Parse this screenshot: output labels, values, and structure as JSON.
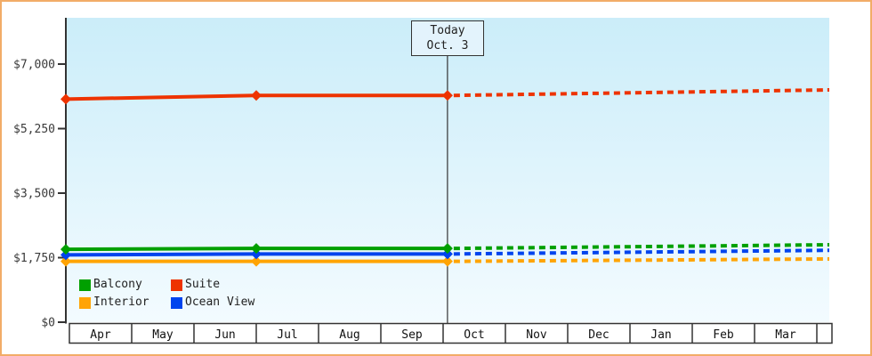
{
  "chart_data": {
    "type": "line",
    "title": "",
    "y_axis": {
      "max_value": 7000,
      "ticks": [
        {
          "label": "$0",
          "value": 0
        },
        {
          "label": "$1,750",
          "value": 1750
        },
        {
          "label": "$3,500",
          "value": 3500
        },
        {
          "label": "$5,250",
          "value": 5250
        },
        {
          "label": "$7,000",
          "value": 7000
        }
      ]
    },
    "x_axis": {
      "categories": [
        "Apr",
        "May",
        "Jun",
        "Jul",
        "Aug",
        "Sep",
        "Oct",
        "Nov",
        "Dec",
        "Jan",
        "Feb",
        "Mar"
      ]
    },
    "today": {
      "line1": "Today",
      "line2": "Oct. 3",
      "month_offset": 6.07
    },
    "series": [
      {
        "name": "Interior",
        "color": "#FFA405",
        "solid": {
          "x": [
            0,
            3,
            6.07
          ],
          "values": [
            1650,
            1650,
            1650
          ]
        },
        "dashed": {
          "x": [
            6.17,
            12.2
          ],
          "values": [
            1650,
            1715
          ]
        }
      },
      {
        "name": "Ocean View",
        "color": "#0044EE",
        "solid": {
          "x": [
            0,
            3,
            6.07
          ],
          "values": [
            1825,
            1850,
            1850
          ]
        },
        "dashed": {
          "x": [
            6.17,
            12.2
          ],
          "values": [
            1850,
            1950
          ]
        }
      },
      {
        "name": "Balcony",
        "color": "#00A000",
        "solid": {
          "x": [
            0,
            3,
            6.07
          ],
          "values": [
            1975,
            2000,
            2000
          ]
        },
        "dashed": {
          "x": [
            6.17,
            12.2
          ],
          "values": [
            2000,
            2100
          ]
        }
      },
      {
        "name": "Suite",
        "color": "#EE3300",
        "solid": {
          "x": [
            0,
            3,
            6.07
          ],
          "values": [
            6050,
            6150,
            6150
          ]
        },
        "dashed": {
          "x": [
            6.17,
            12.2
          ],
          "values": [
            6150,
            6300
          ]
        }
      }
    ],
    "legend_position": "bottom-left-inside"
  },
  "legend": {
    "items": [
      {
        "label": "Balcony",
        "color": "#00A000"
      },
      {
        "label": "Suite",
        "color": "#EE3300"
      },
      {
        "label": "Interior",
        "color": "#FFA405"
      },
      {
        "label": "Ocean View",
        "color": "#0044EE"
      }
    ]
  }
}
